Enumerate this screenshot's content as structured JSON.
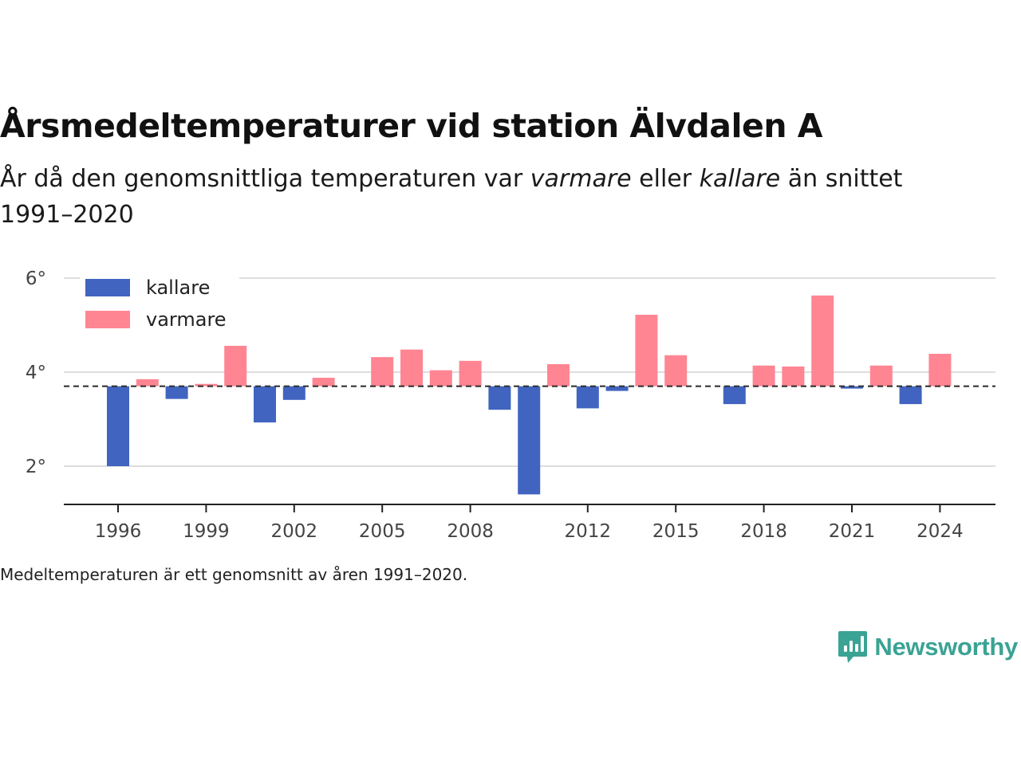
{
  "header": {
    "title": "Årsmedeltemperaturer vid station Älvdalen A",
    "subtitle_part1": "År då den genomsnittliga temperaturen var ",
    "subtitle_warm": "varmare",
    "subtitle_part2": " eller ",
    "subtitle_cold": "kallare",
    "subtitle_part3": " än snittet 1991–2020"
  },
  "footnote": "Medeltemperaturen är ett genomsnitt av åren 1991–2020.",
  "brand": {
    "name": "Newsworthy",
    "icon": "newsworthy-logo-icon",
    "color": "#3aa394"
  },
  "colors": {
    "colder": "#4064c0",
    "warmer": "#ff8593",
    "baseline": "#333333",
    "grid": "#dddddd"
  },
  "chart_data": {
    "type": "bar",
    "baseline": 3.7,
    "ylim": [
      1.2,
      6.0
    ],
    "yticks": [
      2,
      4,
      6
    ],
    "ytick_labels": [
      "2°",
      "4°",
      "6°"
    ],
    "xticks": [
      1996,
      1999,
      2002,
      2005,
      2008,
      2012,
      2015,
      2018,
      2021,
      2024
    ],
    "legend_position": "top-left",
    "series": [
      {
        "name": "kallare",
        "key": "colder"
      },
      {
        "name": "varmare",
        "key": "warmer"
      }
    ],
    "x": [
      1996,
      1997,
      1998,
      1999,
      2000,
      2001,
      2002,
      2003,
      2005,
      2006,
      2007,
      2008,
      2009,
      2010,
      2011,
      2012,
      2013,
      2014,
      2015,
      2017,
      2018,
      2019,
      2020,
      2021,
      2022,
      2023,
      2024
    ],
    "values": [
      2.0,
      3.85,
      3.43,
      3.75,
      4.56,
      2.93,
      3.41,
      3.88,
      4.32,
      4.48,
      4.04,
      4.24,
      3.2,
      1.4,
      4.17,
      3.23,
      3.6,
      5.22,
      4.36,
      3.32,
      4.14,
      4.12,
      5.63,
      3.65,
      4.14,
      3.32,
      4.39
    ],
    "grid": true
  }
}
